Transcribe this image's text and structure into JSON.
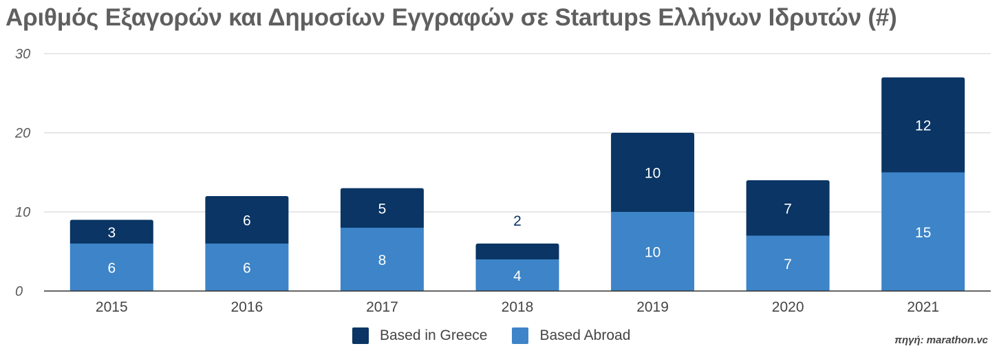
{
  "chart_data": {
    "type": "bar",
    "stacked": true,
    "title": "Αριθμός Εξαγορών και Δημοσίων Εγγραφών σε Startups Ελλήνων Ιδρυτών (#)",
    "categories": [
      "2015",
      "2016",
      "2017",
      "2018",
      "2019",
      "2020",
      "2021"
    ],
    "series": [
      {
        "name": "Based Abroad",
        "values": [
          6,
          6,
          8,
          4,
          10,
          7,
          15
        ],
        "color": "#3d84c8",
        "label_color": "#ffffff"
      },
      {
        "name": "Based in Greece",
        "values": [
          3,
          6,
          5,
          2,
          10,
          7,
          12
        ],
        "color": "#0a3564",
        "label_color": "#ffffff"
      }
    ],
    "ylim": [
      0,
      30
    ],
    "yticks": [
      "0",
      "10",
      "20",
      "30"
    ],
    "grid": true,
    "legend_position": "bottom",
    "legend_order": [
      "Based in Greece",
      "Based Abroad"
    ]
  },
  "source": "πηγή: marathon.vc"
}
